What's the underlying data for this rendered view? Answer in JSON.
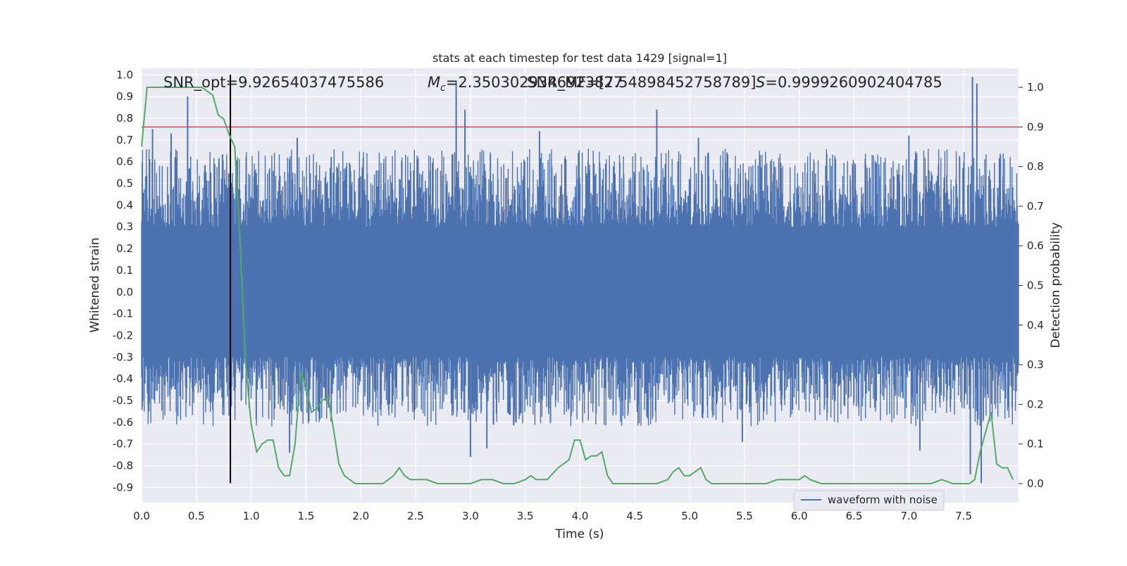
{
  "chart_data": {
    "type": "line",
    "title": "stats at each timestep for test data 1429 [signal=1]",
    "xlabel": "Time (s)",
    "ylabel": "Whitened strain",
    "y2label": "Detection probability",
    "xlim": [
      0,
      8
    ],
    "ylim": [
      -0.97,
      1.03
    ],
    "y2lim": [
      -0.048,
      1.048
    ],
    "xticks": [
      "0.0",
      "0.5",
      "1.0",
      "1.5",
      "2.0",
      "2.5",
      "3.0",
      "3.5",
      "4.0",
      "4.5",
      "5.0",
      "5.5",
      "6.0",
      "6.5",
      "7.0",
      "7.5"
    ],
    "xtick_values": [
      0,
      0.5,
      1,
      1.5,
      2,
      2.5,
      3,
      3.5,
      4,
      4.5,
      5,
      5.5,
      6,
      6.5,
      7,
      7.5
    ],
    "yticks": [
      "1.0",
      "0.9",
      "0.8",
      "0.7",
      "0.6",
      "0.5",
      "0.4",
      "0.3",
      "0.2",
      "0.1",
      "0.0",
      "-0.1",
      "-0.2",
      "-0.3",
      "-0.4",
      "-0.5",
      "-0.6",
      "-0.7",
      "-0.8",
      "-0.9"
    ],
    "ytick_values": [
      1.0,
      0.9,
      0.8,
      0.7,
      0.6,
      0.5,
      0.4,
      0.3,
      0.2,
      0.1,
      0.0,
      -0.1,
      -0.2,
      -0.3,
      -0.4,
      -0.5,
      -0.6,
      -0.7,
      -0.8,
      -0.9
    ],
    "y2ticks": [
      "1.0",
      "0.9",
      "0.8",
      "0.7",
      "0.6",
      "0.5",
      "0.4",
      "0.3",
      "0.2",
      "0.1",
      "0.0"
    ],
    "y2tick_values": [
      1.0,
      0.9,
      0.8,
      0.7,
      0.6,
      0.5,
      0.4,
      0.3,
      0.2,
      0.1,
      0.0
    ],
    "grid": true,
    "legend": {
      "position": "lower-right",
      "entries": [
        "waveform with noise"
      ]
    },
    "annotations": {
      "snr_opt": "SNR_opt=9.92654037475586",
      "mc_prefix": "M",
      "mc_sub": "c",
      "mc_value": "=2.3503029346923827",
      "snr_mf": "SNR_MF=[7.54898452758789]",
      "s_prefix": "S",
      "s_value": "=0.9999260902404785"
    },
    "threshold": {
      "value": 0.9,
      "axis": "y2",
      "color": "#c44e52"
    },
    "marker_time": 0.81,
    "series": [
      {
        "name": "waveform with noise",
        "axis": "y",
        "color": "#4c72b0",
        "kind": "noise-envelope",
        "core_amplitude": 0.3,
        "peaks": [
          {
            "x": 0.42,
            "y": 0.9
          },
          {
            "x": 0.27,
            "y": 0.73
          },
          {
            "x": 0.1,
            "y": 0.75
          },
          {
            "x": 1.42,
            "y": 0.71
          },
          {
            "x": 2.87,
            "y": 0.97
          },
          {
            "x": 2.95,
            "y": 0.84
          },
          {
            "x": 3.63,
            "y": 0.74
          },
          {
            "x": 4.7,
            "y": 0.84
          },
          {
            "x": 5.08,
            "y": 0.71
          },
          {
            "x": 7.58,
            "y": 0.99
          },
          {
            "x": 7.62,
            "y": 0.96
          },
          {
            "x": 7.0,
            "y": 0.72
          }
        ],
        "troughs": [
          {
            "x": 0.06,
            "y": -0.52
          },
          {
            "x": 1.35,
            "y": -0.74
          },
          {
            "x": 3.0,
            "y": -0.76
          },
          {
            "x": 3.15,
            "y": -0.72
          },
          {
            "x": 5.48,
            "y": -0.69
          },
          {
            "x": 7.1,
            "y": -0.73
          },
          {
            "x": 7.66,
            "y": -0.88
          },
          {
            "x": 7.56,
            "y": -0.84
          }
        ]
      },
      {
        "name": "detection probability",
        "axis": "y2",
        "color": "#55a868",
        "x": [
          0,
          0.05,
          0.1,
          0.15,
          0.2,
          0.25,
          0.3,
          0.35,
          0.4,
          0.45,
          0.5,
          0.55,
          0.6,
          0.65,
          0.7,
          0.75,
          0.8,
          0.85,
          0.9,
          0.95,
          1.0,
          1.05,
          1.1,
          1.15,
          1.2,
          1.25,
          1.3,
          1.35,
          1.4,
          1.45,
          1.5,
          1.55,
          1.6,
          1.65,
          1.7,
          1.75,
          1.8,
          1.85,
          1.9,
          1.95,
          2.0,
          2.1,
          2.2,
          2.3,
          2.35,
          2.4,
          2.45,
          2.5,
          2.6,
          2.7,
          2.8,
          2.9,
          3.0,
          3.1,
          3.2,
          3.3,
          3.4,
          3.5,
          3.55,
          3.6,
          3.7,
          3.8,
          3.85,
          3.9,
          3.95,
          4.0,
          4.05,
          4.1,
          4.15,
          4.2,
          4.25,
          4.3,
          4.4,
          4.5,
          4.6,
          4.7,
          4.8,
          4.85,
          4.9,
          4.95,
          5.0,
          5.05,
          5.1,
          5.15,
          5.2,
          5.3,
          5.4,
          5.5,
          5.6,
          5.7,
          5.8,
          5.9,
          6.0,
          6.05,
          6.1,
          6.2,
          6.3,
          6.4,
          6.5,
          6.6,
          6.7,
          6.8,
          6.9,
          7.0,
          7.1,
          7.2,
          7.3,
          7.4,
          7.5,
          7.55,
          7.6,
          7.65,
          7.7,
          7.75,
          7.8,
          7.85,
          7.9,
          7.95
        ],
        "values": [
          0.85,
          1.0,
          1.0,
          1.0,
          1.0,
          1.0,
          1.0,
          1.0,
          1.0,
          1.0,
          1.0,
          1.0,
          0.99,
          0.98,
          0.93,
          0.92,
          0.88,
          0.85,
          0.6,
          0.3,
          0.15,
          0.08,
          0.1,
          0.11,
          0.11,
          0.04,
          0.02,
          0.02,
          0.1,
          0.28,
          0.25,
          0.18,
          0.19,
          0.21,
          0.22,
          0.14,
          0.05,
          0.02,
          0.01,
          0.0,
          0.0,
          0.0,
          0.0,
          0.02,
          0.04,
          0.02,
          0.01,
          0.01,
          0.01,
          0.0,
          0.0,
          0.0,
          0.0,
          0.01,
          0.01,
          0.0,
          0.0,
          0.01,
          0.02,
          0.01,
          0.01,
          0.04,
          0.05,
          0.06,
          0.11,
          0.11,
          0.06,
          0.07,
          0.07,
          0.08,
          0.02,
          0.0,
          0.0,
          0.0,
          0.0,
          0.0,
          0.01,
          0.03,
          0.04,
          0.02,
          0.02,
          0.03,
          0.04,
          0.01,
          0.0,
          0.0,
          0.0,
          0.0,
          0.0,
          0.0,
          0.01,
          0.01,
          0.01,
          0.02,
          0.01,
          0.0,
          0.0,
          0.0,
          0.0,
          0.0,
          0.0,
          0.0,
          0.0,
          0.0,
          0.0,
          0.0,
          0.01,
          0.0,
          0.0,
          0.0,
          0.01,
          0.08,
          0.13,
          0.18,
          0.05,
          0.04,
          0.04,
          0.01
        ]
      }
    ]
  }
}
